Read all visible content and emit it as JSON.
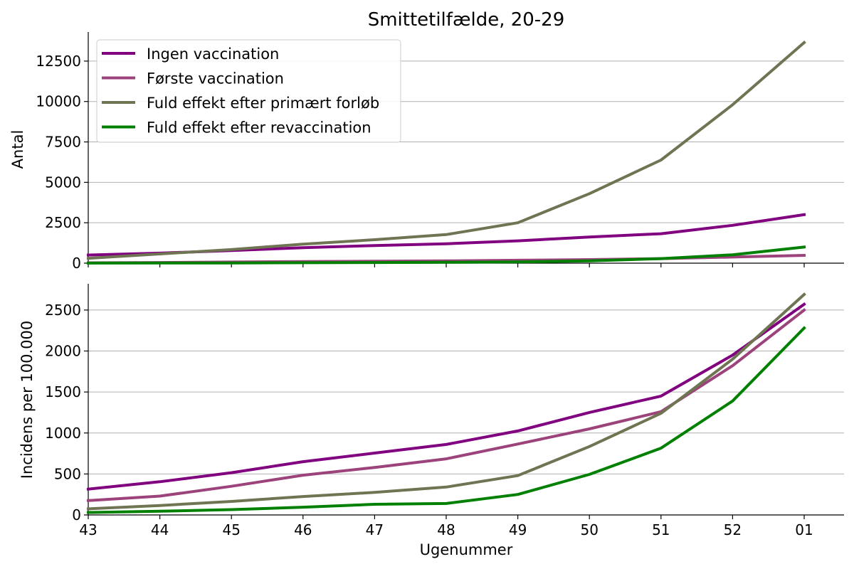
{
  "chart_data": {
    "title": "Smittetilfælde, 20-29",
    "xlabel": "Ugenummer",
    "categories": [
      "43",
      "44",
      "45",
      "46",
      "47",
      "48",
      "49",
      "50",
      "51",
      "52",
      "01"
    ],
    "legend_position": "upper-left of top panel",
    "series_colors": {
      "Ingen vaccination": "#800080",
      "Første vaccination": "#9c437c",
      "Fuld effekt efter primært forløb": "#6f7552",
      "Fuld effekt efter revaccination": "#008000"
    },
    "panels": [
      {
        "type": "line",
        "ylabel": "Antal",
        "ylim": [
          0,
          14300
        ],
        "yticks": [
          0,
          2500,
          5000,
          7500,
          10000,
          12500
        ],
        "grid": "horizontal",
        "series": [
          {
            "name": "Ingen vaccination",
            "values": [
              500,
              620,
              780,
              960,
              1090,
              1200,
              1380,
              1620,
              1820,
              2340,
              3000
            ]
          },
          {
            "name": "Første vaccination",
            "values": [
              20,
              40,
              70,
              100,
              120,
              140,
              180,
              220,
              280,
              380,
              480
            ]
          },
          {
            "name": "Fuld effekt efter primært forløb",
            "values": [
              300,
              570,
              840,
              1180,
              1450,
              1770,
              2500,
              4300,
              6380,
              9800,
              13650
            ]
          },
          {
            "name": "Fuld effekt efter revaccination",
            "values": [
              5,
              10,
              15,
              25,
              40,
              55,
              80,
              140,
              280,
              520,
              1000
            ]
          }
        ]
      },
      {
        "type": "line",
        "ylabel": "Incidens per 100.000",
        "ylim": [
          0,
          2820
        ],
        "yticks": [
          0,
          500,
          1000,
          1500,
          2000,
          2500
        ],
        "grid": "horizontal",
        "series": [
          {
            "name": "Ingen vaccination",
            "values": [
              315,
              405,
              515,
              650,
              755,
              860,
              1025,
              1250,
              1450,
              1950,
              2570
            ]
          },
          {
            "name": "Første vaccination",
            "values": [
              175,
              230,
              350,
              485,
              580,
              685,
              865,
              1050,
              1260,
              1820,
              2500
            ]
          },
          {
            "name": "Fuld effekt efter primært forløb",
            "values": [
              75,
              115,
              165,
              225,
              275,
              340,
              480,
              835,
              1240,
              1900,
              2690
            ]
          },
          {
            "name": "Fuld effekt efter revaccination",
            "values": [
              30,
              45,
              65,
              95,
              130,
              140,
              250,
              495,
              815,
              1390,
              2280
            ]
          }
        ]
      }
    ]
  }
}
